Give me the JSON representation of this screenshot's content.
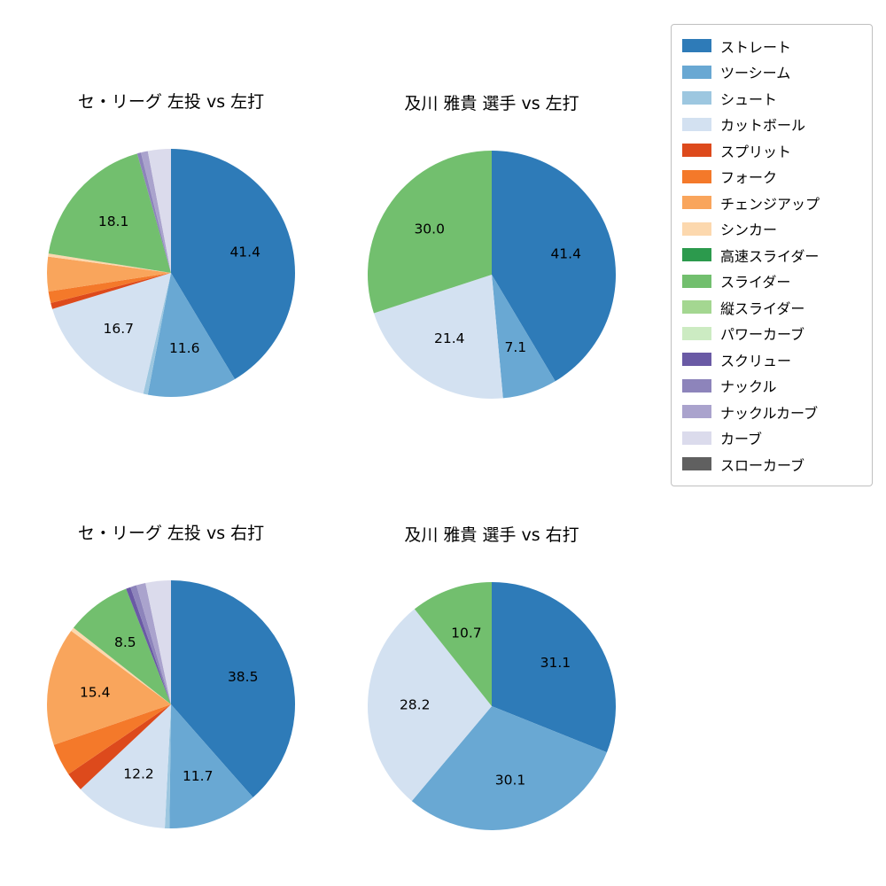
{
  "page": {
    "background": "#ffffff"
  },
  "legend": {
    "position": "top-right",
    "items": [
      {
        "label": "ストレート",
        "color": "#2e7bb8"
      },
      {
        "label": "ツーシーム",
        "color": "#69a8d3"
      },
      {
        "label": "シュート",
        "color": "#9dc7e0"
      },
      {
        "label": "カットボール",
        "color": "#d3e1f1"
      },
      {
        "label": "スプリット",
        "color": "#dd4a1c"
      },
      {
        "label": "フォーク",
        "color": "#f4792a"
      },
      {
        "label": "チェンジアップ",
        "color": "#f9a55c"
      },
      {
        "label": "シンカー",
        "color": "#fcd8ae"
      },
      {
        "label": "高速スライダー",
        "color": "#2c9a4d"
      },
      {
        "label": "スライダー",
        "color": "#72bf6e"
      },
      {
        "label": "縦スライダー",
        "color": "#a4d791"
      },
      {
        "label": "パワーカーブ",
        "color": "#ccebc2"
      },
      {
        "label": "スクリュー",
        "color": "#6a5aa5"
      },
      {
        "label": "ナックル",
        "color": "#8d84bb"
      },
      {
        "label": "ナックルカーブ",
        "color": "#aaa3cd"
      },
      {
        "label": "カーブ",
        "color": "#dbdbec"
      },
      {
        "label": "スローカーブ",
        "color": "#606060"
      }
    ]
  },
  "chart_data": [
    {
      "type": "pie",
      "title": "セ・リーグ 左投 vs 左打",
      "start_angle_deg": 90,
      "direction": "clockwise",
      "label_min_pct": 6,
      "slices": [
        {
          "pitch": "ストレート",
          "value": 41.4
        },
        {
          "pitch": "ツーシーム",
          "value": 11.6
        },
        {
          "pitch": "シュート",
          "value": 0.6
        },
        {
          "pitch": "カットボール",
          "value": 16.7
        },
        {
          "pitch": "スプリット",
          "value": 0.8
        },
        {
          "pitch": "フォーク",
          "value": 1.5
        },
        {
          "pitch": "チェンジアップ",
          "value": 4.5
        },
        {
          "pitch": "シンカー",
          "value": 0.4
        },
        {
          "pitch": "スライダー",
          "value": 18.1
        },
        {
          "pitch": "ナックル",
          "value": 0.5
        },
        {
          "pitch": "ナックルカーブ",
          "value": 0.9
        },
        {
          "pitch": "カーブ",
          "value": 3.0
        }
      ]
    },
    {
      "type": "pie",
      "title": "及川 雅貴 選手 vs 左打",
      "start_angle_deg": 90,
      "direction": "clockwise",
      "label_min_pct": 6,
      "slices": [
        {
          "pitch": "ストレート",
          "value": 41.4
        },
        {
          "pitch": "ツーシーム",
          "value": 7.1
        },
        {
          "pitch": "カットボール",
          "value": 21.4
        },
        {
          "pitch": "スライダー",
          "value": 30.0
        }
      ]
    },
    {
      "type": "pie",
      "title": "セ・リーグ 左投 vs 右打",
      "start_angle_deg": 90,
      "direction": "clockwise",
      "label_min_pct": 6,
      "slices": [
        {
          "pitch": "ストレート",
          "value": 38.5
        },
        {
          "pitch": "ツーシーム",
          "value": 11.7
        },
        {
          "pitch": "シュート",
          "value": 0.6
        },
        {
          "pitch": "カットボール",
          "value": 12.2
        },
        {
          "pitch": "スプリット",
          "value": 2.5
        },
        {
          "pitch": "フォーク",
          "value": 4.2
        },
        {
          "pitch": "チェンジアップ",
          "value": 15.4
        },
        {
          "pitch": "シンカー",
          "value": 0.5
        },
        {
          "pitch": "スライダー",
          "value": 8.5
        },
        {
          "pitch": "スクリュー",
          "value": 0.6
        },
        {
          "pitch": "ナックル",
          "value": 0.8
        },
        {
          "pitch": "ナックルカーブ",
          "value": 1.2
        },
        {
          "pitch": "カーブ",
          "value": 3.3
        }
      ]
    },
    {
      "type": "pie",
      "title": "及川 雅貴 選手 vs 右打",
      "start_angle_deg": 90,
      "direction": "clockwise",
      "label_min_pct": 6,
      "slices": [
        {
          "pitch": "ストレート",
          "value": 31.1
        },
        {
          "pitch": "ツーシーム",
          "value": 30.1
        },
        {
          "pitch": "カットボール",
          "value": 28.2
        },
        {
          "pitch": "スライダー",
          "value": 10.7
        }
      ]
    }
  ]
}
